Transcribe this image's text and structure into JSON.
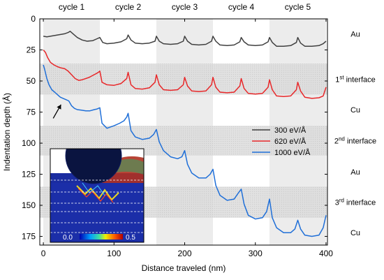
{
  "chart_data": {
    "type": "line",
    "xlabel": "Distance traveled (nm)",
    "ylabel": "Indentation depth (Å)",
    "xlim": [
      -5,
      402
    ],
    "ylim": [
      0,
      182
    ],
    "y_inverted": true,
    "x_ticks": [
      0,
      100,
      200,
      300,
      400
    ],
    "y_ticks": [
      0,
      25,
      50,
      75,
      100,
      125,
      150,
      175
    ],
    "cycles": [
      {
        "label": "cycle 1",
        "range": [
          0,
          80
        ],
        "shaded": true
      },
      {
        "label": "cycle 2",
        "range": [
          80,
          160
        ],
        "shaded": false
      },
      {
        "label": "cycle 3",
        "range": [
          160,
          240
        ],
        "shaded": true
      },
      {
        "label": "cycle 4",
        "range": [
          240,
          320
        ],
        "shaded": false
      },
      {
        "label": "cycle 5",
        "range": [
          320,
          400
        ],
        "shaded": true
      }
    ],
    "bands": [
      {
        "range": [
          36,
          61
        ],
        "label": "1",
        "sup": "st",
        "rest": " interface"
      },
      {
        "range": [
          86,
          110
        ],
        "label": "2",
        "sup": "nd",
        "rest": " interface"
      },
      {
        "range": [
          135,
          160
        ],
        "label": "3",
        "sup": "rd",
        "rest": " interface"
      }
    ],
    "layer_labels": [
      {
        "text": "Au",
        "y": 12
      },
      {
        "text": "Cu",
        "y": 73
      },
      {
        "text": "Au",
        "y": 123
      },
      {
        "text": "Cu",
        "y": 172
      }
    ],
    "series": [
      {
        "name": "300 eV/Å",
        "color": "#404040",
        "x": [
          0,
          5,
          10,
          15,
          20,
          25,
          30,
          35,
          38,
          42,
          48,
          55,
          62,
          70,
          76,
          80,
          84,
          90,
          100,
          110,
          118,
          120,
          124,
          130,
          140,
          150,
          158,
          160,
          164,
          170,
          180,
          190,
          198,
          200,
          204,
          210,
          220,
          230,
          238,
          240,
          244,
          250,
          260,
          270,
          278,
          280,
          284,
          290,
          300,
          310,
          318,
          320,
          324,
          330,
          340,
          350,
          358,
          360,
          364,
          370,
          380,
          390,
          396,
          400
        ],
        "y": [
          14,
          14.5,
          14,
          13.5,
          13,
          12.5,
          12,
          11,
          10,
          12,
          15,
          17,
          18,
          17.5,
          16,
          15,
          19,
          20,
          19.5,
          18.5,
          16,
          13,
          17,
          19.5,
          20,
          19.5,
          18,
          14,
          18,
          20,
          20.5,
          20,
          18,
          14,
          18,
          20.5,
          21,
          20.5,
          18,
          14,
          18,
          21,
          21.5,
          21,
          18.5,
          15,
          18.5,
          21,
          21.5,
          21,
          18.5,
          15,
          19,
          22,
          22,
          21.5,
          19,
          15,
          19.5,
          22,
          22,
          21.5,
          20,
          18
        ]
      },
      {
        "name": "620 eV/Å",
        "color": "#e8282a",
        "x": [
          0,
          3,
          6,
          10,
          15,
          20,
          25,
          30,
          35,
          40,
          45,
          50,
          55,
          60,
          65,
          70,
          75,
          78,
          80,
          83,
          90,
          100,
          110,
          118,
          120,
          124,
          130,
          140,
          150,
          158,
          160,
          164,
          170,
          180,
          190,
          198,
          200,
          204,
          210,
          220,
          230,
          238,
          240,
          244,
          250,
          260,
          270,
          278,
          280,
          284,
          290,
          300,
          310,
          318,
          320,
          324,
          330,
          340,
          350,
          358,
          360,
          364,
          370,
          380,
          390,
          396,
          400
        ],
        "y": [
          25,
          27,
          31,
          35,
          37,
          38.5,
          39.5,
          40,
          42,
          45,
          48,
          49.5,
          49,
          48,
          47,
          45.5,
          44,
          43,
          42,
          51,
          53,
          53.5,
          52,
          48,
          43,
          53,
          56,
          56.5,
          55.5,
          51,
          45,
          53,
          57,
          57.5,
          57,
          53,
          47,
          54,
          58,
          58.5,
          58,
          53,
          47,
          55,
          59,
          59.5,
          59,
          54,
          48,
          56,
          60,
          60.5,
          60,
          55,
          49,
          57,
          62,
          62.5,
          62,
          57,
          51,
          58,
          63,
          64,
          63.5,
          62,
          55
        ]
      },
      {
        "name": "1000 eV/Å",
        "color": "#1f6fd8",
        "x": [
          0,
          2,
          5,
          8,
          12,
          16,
          20,
          24,
          28,
          32,
          36,
          40,
          44,
          48,
          54,
          60,
          66,
          72,
          76,
          78,
          80,
          83,
          90,
          100,
          108,
          114,
          118,
          120,
          124,
          130,
          140,
          150,
          156,
          160,
          164,
          170,
          180,
          190,
          196,
          200,
          204,
          210,
          220,
          230,
          236,
          240,
          244,
          250,
          260,
          270,
          276,
          280,
          284,
          290,
          300,
          310,
          316,
          320,
          324,
          330,
          340,
          350,
          356,
          360,
          364,
          370,
          380,
          390,
          396,
          400
        ],
        "y": [
          37,
          41,
          48,
          53,
          57,
          59,
          61,
          63,
          64,
          65,
          66,
          70,
          72,
          73,
          73.5,
          74,
          74,
          73,
          72.5,
          72,
          71.5,
          84,
          88,
          86,
          84,
          82,
          79,
          76,
          90,
          95,
          97,
          96,
          93,
          89,
          99,
          106,
          111,
          112.5,
          111,
          106,
          117,
          124,
          128,
          128,
          125,
          121,
          134,
          142,
          146,
          145,
          140,
          137,
          149,
          158,
          161,
          160,
          155,
          145,
          160,
          168,
          172,
          172,
          169,
          162,
          169,
          174,
          175,
          174,
          168,
          158
        ]
      }
    ],
    "annotation_arrow": {
      "from": [
        14,
        80
      ],
      "to": [
        25,
        69
      ]
    },
    "inset": {
      "colorbar_min": "0.0",
      "colorbar_max": "0.5"
    },
    "legend_position": "right-middle"
  }
}
